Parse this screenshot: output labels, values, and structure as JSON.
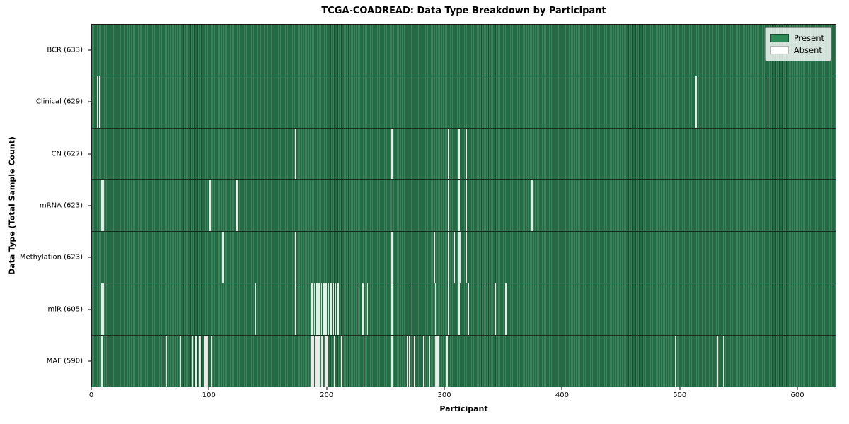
{
  "chart_data": {
    "type": "heatmap",
    "title": "TCGA-COADREAD: Data Type Breakdown by Participant",
    "xlabel": "Participant",
    "ylabel": "Data Type (Total Sample Count)",
    "x_max": 633,
    "x_ticks": [
      0,
      100,
      200,
      300,
      400,
      500,
      600
    ],
    "grid": false,
    "legend_position": "upper right",
    "legend": [
      {
        "label": "Present",
        "color": "#2e8b57"
      },
      {
        "label": "Absent",
        "color": "#ffffff"
      }
    ],
    "colors": {
      "present_fill": "#35865a",
      "present_edge": "#1b4a2f",
      "absent_fill": "#f6f6f4"
    },
    "rows": [
      {
        "name": "BCR",
        "total": 633,
        "label": "BCR (633)",
        "absent_participants": []
      },
      {
        "name": "Clinical",
        "total": 629,
        "label": "Clinical (629)",
        "absent_participants": [
          4,
          6,
          514,
          575
        ]
      },
      {
        "name": "CN",
        "total": 627,
        "label": "CN (627)",
        "absent_participants": [
          173,
          254,
          255,
          303,
          312,
          318
        ]
      },
      {
        "name": "mRNA",
        "total": 623,
        "label": "mRNA (623)",
        "absent_participants": [
          8,
          9,
          100,
          122,
          123,
          254,
          303,
          312,
          318,
          374
        ]
      },
      {
        "name": "Methylation",
        "total": 623,
        "label": "Methylation (623)",
        "absent_participants": [
          111,
          173,
          254,
          255,
          291,
          303,
          308,
          312,
          313,
          318
        ]
      },
      {
        "name": "miR",
        "total": 605,
        "label": "miR (605)",
        "absent_participants": [
          8,
          9,
          139,
          173,
          187,
          189,
          191,
          193,
          195,
          197,
          199,
          201,
          203,
          205,
          207,
          209,
          225,
          230,
          234,
          255,
          272,
          292,
          303,
          312,
          320,
          334,
          343,
          352
        ]
      },
      {
        "name": "MAF",
        "total": 590,
        "label": "MAF (590)",
        "absent_participants": [
          8,
          13,
          60,
          63,
          75,
          85,
          88,
          91,
          92,
          95,
          96,
          97,
          98,
          101,
          186,
          187,
          188,
          190,
          191,
          192,
          193,
          195,
          196,
          198,
          199,
          200,
          206,
          212,
          231,
          255,
          268,
          270,
          272,
          274,
          282,
          287,
          292,
          293,
          294,
          302,
          496,
          532,
          537
        ]
      }
    ]
  }
}
